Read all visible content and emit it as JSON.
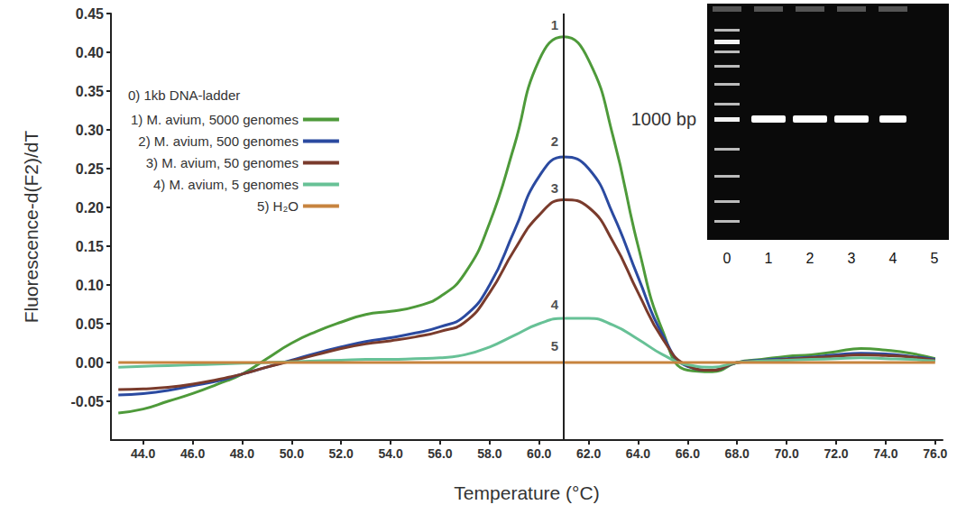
{
  "chart_data": {
    "type": "line",
    "x_label": "Temperature (°C)",
    "y_label": "Fluorescence-d(F2)/dT",
    "xlim": [
      42.7,
      76.3
    ],
    "xticks": [
      {
        "value": 44,
        "label": "44.0"
      },
      {
        "value": 46,
        "label": "46.0"
      },
      {
        "value": 48,
        "label": "48.0"
      },
      {
        "value": 50,
        "label": "50.0"
      },
      {
        "value": 52,
        "label": "52.0"
      },
      {
        "value": 54,
        "label": "54.0"
      },
      {
        "value": 56,
        "label": "56.0"
      },
      {
        "value": 58,
        "label": "58.0"
      },
      {
        "value": 60,
        "label": "60.0"
      },
      {
        "value": 62,
        "label": "62.0"
      },
      {
        "value": 64,
        "label": "64.0"
      },
      {
        "value": 66,
        "label": "66.0"
      },
      {
        "value": 68,
        "label": "68.0"
      },
      {
        "value": 70,
        "label": "70.0"
      },
      {
        "value": 72,
        "label": "72.0"
      },
      {
        "value": 74,
        "label": "74.0"
      },
      {
        "value": 76,
        "label": "76.0"
      }
    ],
    "ylim": [
      -0.1,
      0.45
    ],
    "yticks": [
      -0.05,
      {
        "value": 0,
        "label": "0.00"
      },
      0.05,
      {
        "value": 0.1,
        "label": "0.10"
      },
      0.15,
      {
        "value": 0.2,
        "label": "0.20"
      },
      0.25,
      {
        "value": 0.3,
        "label": "0.30"
      },
      0.35,
      {
        "value": 0.4,
        "label": "0.40"
      },
      0.45
    ],
    "grid": false,
    "legend": "left",
    "marker": "none",
    "line_style": "solid",
    "legend_header": "0) 1kb DNA-ladder",
    "x": [
      43,
      44,
      45,
      46,
      47,
      48,
      49,
      50,
      51,
      52,
      53,
      54,
      55,
      56,
      57,
      58,
      59,
      60,
      61,
      62,
      63,
      64,
      65,
      66,
      67,
      68,
      69,
      70,
      71,
      72,
      73,
      74,
      75,
      76
    ],
    "series": [
      {
        "name": "1) M. avium, 5000 genomes",
        "color": "#4e9a3a",
        "values": [
          -0.065,
          -0.06,
          -0.05,
          -0.04,
          -0.028,
          -0.015,
          0.005,
          0.025,
          0.04,
          0.052,
          0.062,
          0.066,
          0.072,
          0.085,
          0.115,
          0.18,
          0.28,
          0.39,
          0.42,
          0.39,
          0.29,
          0.15,
          0.04,
          -0.01,
          -0.012,
          0.0,
          0.004,
          0.008,
          0.01,
          0.014,
          0.018,
          0.016,
          0.012,
          0.005
        ]
      },
      {
        "name": "2) M. avium, 500 genomes",
        "color": "#2b4aa0",
        "values": [
          -0.042,
          -0.04,
          -0.036,
          -0.03,
          -0.024,
          -0.015,
          -0.006,
          0.003,
          0.012,
          0.02,
          0.027,
          0.032,
          0.038,
          0.046,
          0.06,
          0.1,
          0.17,
          0.24,
          0.265,
          0.25,
          0.19,
          0.11,
          0.035,
          -0.005,
          -0.01,
          0.0,
          0.003,
          0.005,
          0.007,
          0.01,
          0.012,
          0.011,
          0.008,
          0.004
        ]
      },
      {
        "name": "3) M. avium, 50 genomes",
        "color": "#7a3b2c",
        "values": [
          -0.035,
          -0.034,
          -0.032,
          -0.028,
          -0.022,
          -0.015,
          -0.006,
          0.002,
          0.01,
          0.018,
          0.024,
          0.028,
          0.033,
          0.04,
          0.052,
          0.09,
          0.145,
          0.19,
          0.21,
          0.2,
          0.155,
          0.09,
          0.03,
          -0.004,
          -0.01,
          0.0,
          0.002,
          0.004,
          0.006,
          0.008,
          0.01,
          0.009,
          0.007,
          0.003
        ]
      },
      {
        "name": "4) M. avium, 5 genomes",
        "color": "#67c196",
        "values": [
          -0.006,
          -0.005,
          -0.004,
          -0.003,
          -0.002,
          -0.001,
          0.0,
          0.001,
          0.002,
          0.003,
          0.004,
          0.004,
          0.005,
          0.006,
          0.01,
          0.02,
          0.035,
          0.05,
          0.057,
          0.057,
          0.048,
          0.03,
          0.01,
          -0.003,
          -0.006,
          0.0,
          0.002,
          0.003,
          0.004,
          0.005,
          0.006,
          0.005,
          0.004,
          0.002
        ]
      },
      {
        "name": "5) H₂O",
        "color": "#c7843f",
        "values": [
          0.0,
          0.0,
          0.0,
          0.0,
          0.0,
          0.0,
          0.0,
          0.0,
          0.0,
          0.0,
          0.0,
          0.0,
          0.0,
          0.0,
          0.0,
          0.0,
          0.0,
          0.0,
          0.0,
          0.0,
          0.0,
          0.0,
          0.0,
          0.0,
          0.0,
          0.0,
          0.0,
          0.0,
          0.0,
          0.0,
          0.0,
          0.0,
          0.0,
          0.0
        ]
      }
    ],
    "reference_line_x": 61.0,
    "annotations": [
      {
        "text": "1",
        "x": 61.0,
        "y": 0.435
      },
      {
        "text": "2",
        "x": 61.0,
        "y": 0.285
      },
      {
        "text": "3",
        "x": 61.0,
        "y": 0.225
      },
      {
        "text": "4",
        "x": 61.0,
        "y": 0.075
      },
      {
        "text": "5",
        "x": 61.0,
        "y": 0.022
      }
    ],
    "inset": {
      "type": "gel",
      "band_label": "1000 bp",
      "lane_labels": [
        "0",
        "1",
        "2",
        "3",
        "4",
        "5"
      ]
    }
  }
}
